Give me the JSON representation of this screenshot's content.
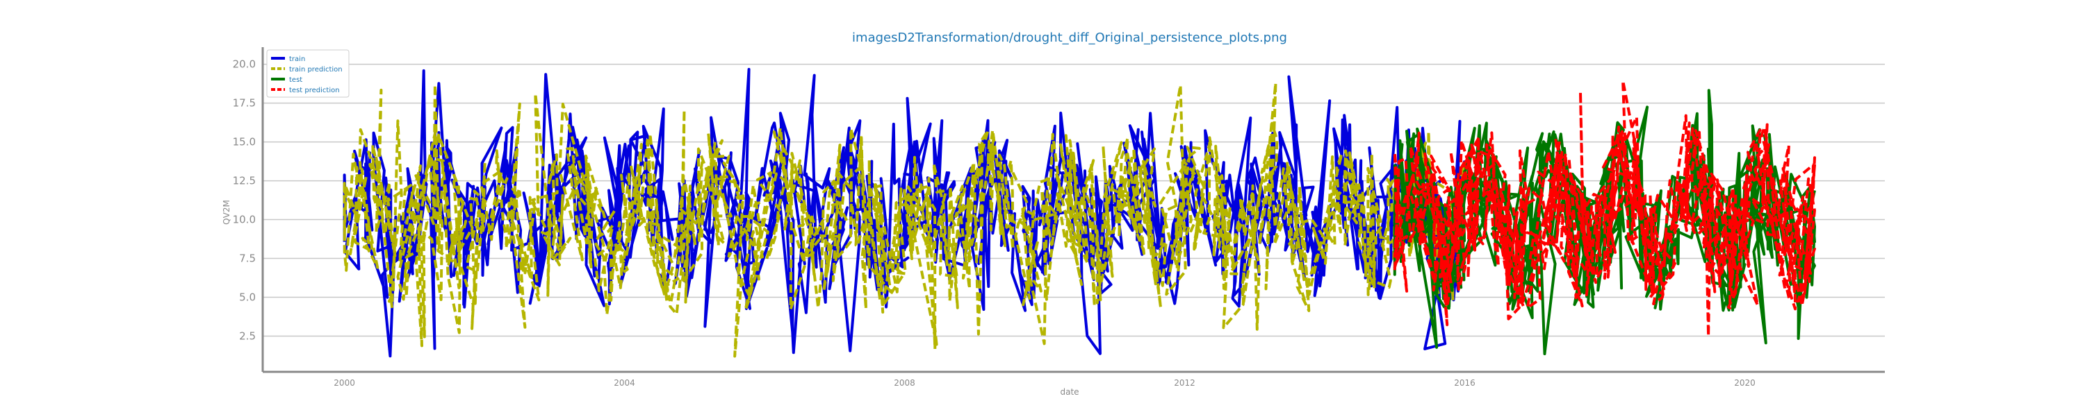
{
  "chart_data": {
    "type": "line",
    "title": "imagesD2Transformation/drought_diff_Original_persistence_plots.png",
    "xlabel": "date",
    "ylabel": "QV2M",
    "x_axis_type": "date",
    "xlim": [
      "1998-11-01",
      "2022-01-01"
    ],
    "ylim": [
      0.2,
      21.1
    ],
    "x_ticks": [
      "2000",
      "2004",
      "2008",
      "2012",
      "2016",
      "2020"
    ],
    "y_ticks": [
      "2.5",
      "5.0",
      "7.5",
      "10.0",
      "12.5",
      "15.0",
      "17.5",
      "20.0"
    ],
    "grid": "horizontal",
    "legend_placement": "top-left",
    "colors": {
      "title": "#1f77b4",
      "axis_label": "#888888",
      "tick_label": "#888888",
      "grid": "#c8c8c8",
      "spine": "#888888"
    },
    "series": [
      {
        "name": "train",
        "color": "#0000dd",
        "style": "solid",
        "x_range": [
          "2000-01-01",
          "2015-12-31"
        ],
        "value_range": [
          1.2,
          19.7
        ],
        "note": "dense seasonal daily series oscillating between roughly 2 and 19"
      },
      {
        "name": "train prediction",
        "color": "#b5b500",
        "style": "dashed",
        "x_range": [
          "2000-01-01",
          "2015-12-31"
        ],
        "value_range": [
          1.2,
          19.0
        ]
      },
      {
        "name": "test",
        "color": "#007700",
        "style": "solid",
        "x_range": [
          "2015-01-01",
          "2020-12-31"
        ],
        "value_range": [
          1.2,
          19.2
        ]
      },
      {
        "name": "test prediction",
        "color": "#ff0000",
        "style": "dashed",
        "x_range": [
          "2015-01-01",
          "2020-12-31"
        ],
        "value_range": [
          1.2,
          19.0
        ]
      }
    ]
  }
}
